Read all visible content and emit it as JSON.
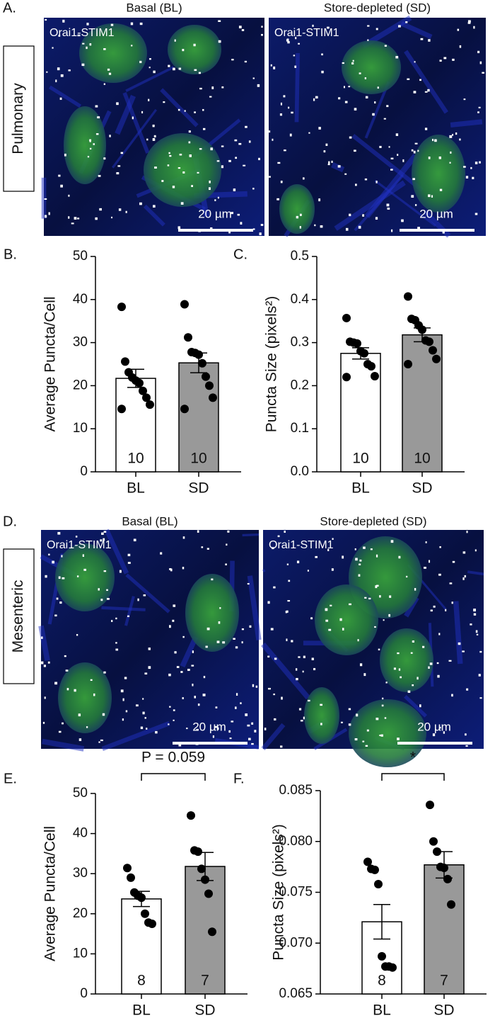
{
  "panels": [
    {
      "letter": "A.",
      "left_title": "Basal (BL)",
      "right_title": "Store-depleted (SD)",
      "row_label": "Pulmonary",
      "image_label": "Orai1-STIM1",
      "scale_bar": "20 µm"
    },
    {
      "letter": "D.",
      "left_title": "Basal (BL)",
      "right_title": "Store-depleted (SD)",
      "row_label": "Mesenteric",
      "image_label": "Orai1-STIM1",
      "scale_bar": "20 µm"
    }
  ],
  "chart_data": [
    {
      "type": "bar",
      "letter": "B.",
      "ylabel": "Average Puncta/Cell",
      "categories": [
        "BL",
        "SD"
      ],
      "colors": [
        "#ffffff",
        "#999999"
      ],
      "values": [
        21.7,
        25.3
      ],
      "errors": [
        2.1,
        2.3
      ],
      "n": [
        10,
        10
      ],
      "points": [
        [
          38.3,
          25.6,
          23.1,
          21.9,
          21.2,
          20.6,
          18.8,
          17.2,
          15.6,
          14.6
        ],
        [
          38.9,
          31.2,
          27.8,
          27.6,
          27.2,
          25.2,
          22.1,
          20.0,
          17.2,
          14.6
        ]
      ],
      "ylim": [
        0,
        50
      ],
      "yticks": [
        0,
        10,
        20,
        30,
        40,
        50
      ]
    },
    {
      "type": "bar",
      "letter": "C.",
      "ylabel": "Puncta Size (pixels²)",
      "categories": [
        "BL",
        "SD"
      ],
      "colors": [
        "#ffffff",
        "#999999"
      ],
      "values": [
        0.275,
        0.318
      ],
      "errors": [
        0.013,
        0.016
      ],
      "n": [
        10,
        10
      ],
      "points": [
        [
          0.357,
          0.302,
          0.3,
          0.298,
          0.28,
          0.275,
          0.25,
          0.245,
          0.222,
          0.22
        ],
        [
          0.407,
          0.355,
          0.352,
          0.34,
          0.33,
          0.305,
          0.302,
          0.282,
          0.262,
          0.25
        ]
      ],
      "ylim": [
        0,
        0.5
      ],
      "yticks": [
        {
          "value": 0,
          "label": "0.0"
        },
        0.1,
        0.2,
        0.3,
        0.4,
        0.5
      ]
    },
    {
      "type": "bar",
      "letter": "E.",
      "ylabel": "Average Puncta/Cell",
      "categories": [
        "BL",
        "SD"
      ],
      "colors": [
        "#ffffff",
        "#999999"
      ],
      "values": [
        23.7,
        31.8
      ],
      "errors": [
        1.9,
        3.5
      ],
      "n": [
        8,
        7
      ],
      "annotation": "P = 0.059",
      "points": [
        [
          31.4,
          29.0,
          25.3,
          24.5,
          24.0,
          20.0,
          17.8,
          17.5
        ],
        [
          44.5,
          35.8,
          35.5,
          31.2,
          28.5,
          25.0,
          15.5
        ]
      ],
      "ylim": [
        0,
        50
      ],
      "yticks": [
        0,
        10,
        20,
        30,
        40,
        50
      ]
    },
    {
      "type": "bar",
      "letter": "F.",
      "ylabel": "Puncta Size (pixels²)",
      "categories": [
        "BL",
        "SD"
      ],
      "colors": [
        "#ffffff",
        "#999999"
      ],
      "values": [
        0.0721,
        0.0777
      ],
      "errors": [
        0.0017,
        0.0013
      ],
      "n": [
        8,
        7
      ],
      "annotation": "*",
      "points": [
        [
          0.078,
          0.0773,
          0.0772,
          0.0758,
          0.0687,
          0.0677,
          0.0677,
          0.0676
        ],
        [
          0.0836,
          0.08,
          0.079,
          0.0775,
          0.0774,
          0.0763,
          0.0738
        ]
      ],
      "ylim": [
        0.065,
        0.085
      ],
      "yticks": [
        0.065,
        {
          "value": 0.07,
          "label": "0.070"
        },
        0.075,
        {
          "value": 0.08,
          "label": "0.080"
        },
        0.085
      ]
    }
  ]
}
